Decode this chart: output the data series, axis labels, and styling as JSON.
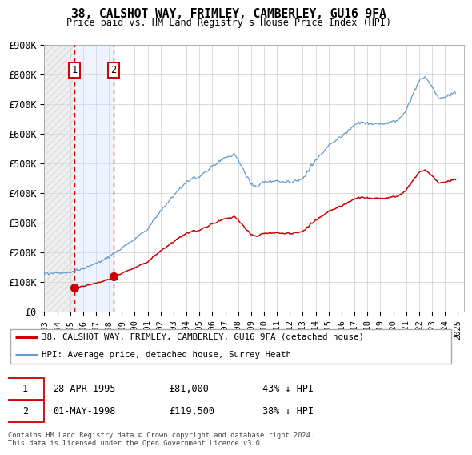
{
  "title": "38, CALSHOT WAY, FRIMLEY, CAMBERLEY, GU16 9FA",
  "subtitle": "Price paid vs. HM Land Registry's House Price Index (HPI)",
  "legend_line1": "38, CALSHOT WAY, FRIMLEY, CAMBERLEY, GU16 9FA (detached house)",
  "legend_line2": "HPI: Average price, detached house, Surrey Heath",
  "footnote": "Contains HM Land Registry data © Crown copyright and database right 2024.\nThis data is licensed under the Open Government Licence v3.0.",
  "purchase1_date": "28-APR-1995",
  "purchase1_price": 81000,
  "purchase1_label": "43% ↓ HPI",
  "purchase2_date": "01-MAY-1998",
  "purchase2_price": 119500,
  "purchase2_label": "38% ↓ HPI",
  "purchase1_year": 1995.32,
  "purchase2_year": 1998.37,
  "ylim": [
    0,
    900000
  ],
  "xlim_start": 1993.0,
  "xlim_end": 2025.5,
  "red_line_color": "#cc0000",
  "blue_line_color": "#6699cc",
  "marker_color": "#cc0000",
  "grid_color": "#cccccc",
  "yticks": [
    0,
    100000,
    200000,
    300000,
    400000,
    500000,
    600000,
    700000,
    800000,
    900000
  ],
  "ytick_labels": [
    "£0",
    "£100K",
    "£200K",
    "£300K",
    "£400K",
    "£500K",
    "£600K",
    "£700K",
    "£800K",
    "£900K"
  ],
  "xticks": [
    1993,
    1994,
    1995,
    1996,
    1997,
    1998,
    1999,
    2000,
    2001,
    2002,
    2003,
    2004,
    2005,
    2006,
    2007,
    2008,
    2009,
    2010,
    2011,
    2012,
    2013,
    2014,
    2015,
    2016,
    2017,
    2018,
    2019,
    2020,
    2021,
    2022,
    2023,
    2024,
    2025
  ]
}
